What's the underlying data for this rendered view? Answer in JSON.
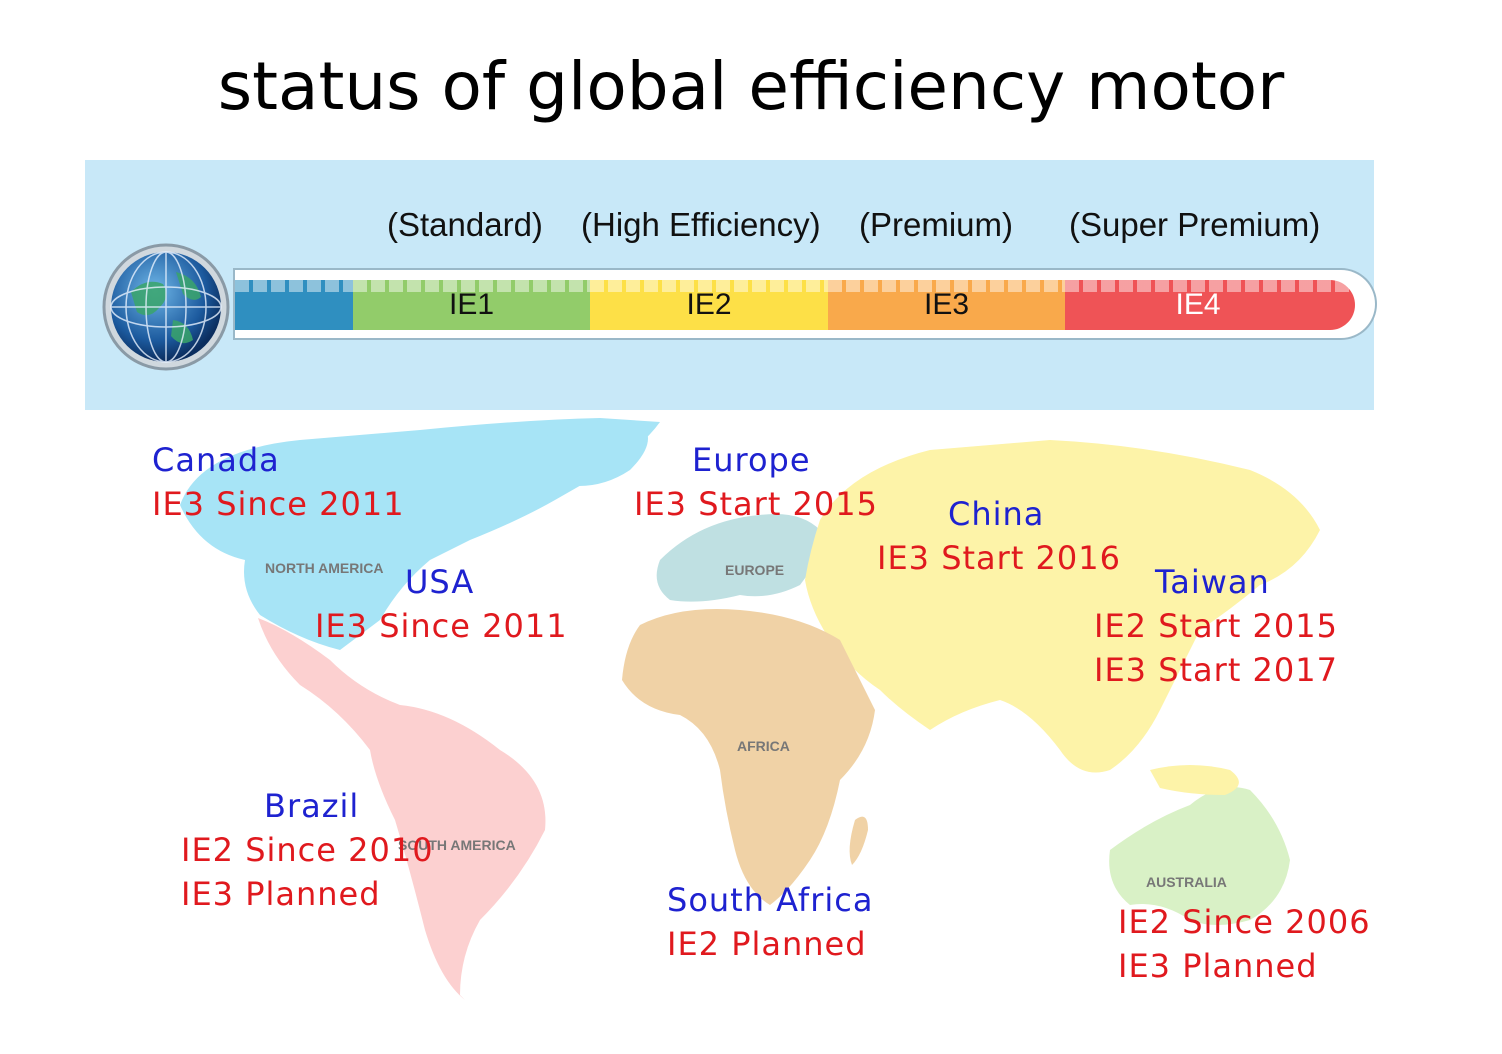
{
  "title": "status of global efficiency motor",
  "scale": {
    "classes": [
      {
        "code": "IE1",
        "name": "(Standard)",
        "color": "#92cc6a",
        "text_color": "#111111"
      },
      {
        "code": "IE2",
        "name": "(High Efficiency)",
        "color": "#fde047",
        "text_color": "#111111"
      },
      {
        "code": "IE3",
        "name": "(Premium)",
        "color": "#f9a94b",
        "text_color": "#111111"
      },
      {
        "code": "IE4",
        "name": "(Super Premium)",
        "color": "#ef5356",
        "text_color": "#ffffff"
      }
    ],
    "base_color": "#2f8fc0"
  },
  "continents": {
    "north_america": "NORTH AMERICA",
    "europe": "EUROPE",
    "africa": "AFRICA",
    "south_america": "SOUTH AMERICA",
    "australia": "AUSTRALIA"
  },
  "continent_colors": {
    "north_america": "#a7e4f6",
    "central_south_america": "#fcd0d0",
    "europe": "#bfe0e2",
    "asia": "#fdf3a8",
    "africa": "#f0d2a6",
    "australia": "#d9f1c6"
  },
  "regions": {
    "canada": {
      "name": "Canada",
      "lines": [
        "IE3 Since 2011"
      ]
    },
    "usa": {
      "name": "USA",
      "lines": [
        "IE3 Since 2011"
      ]
    },
    "europe": {
      "name": "Europe",
      "lines": [
        "IE3 Start 2015"
      ]
    },
    "china": {
      "name": "China",
      "lines": [
        "IE3 Start 2016"
      ]
    },
    "taiwan": {
      "name": "Taiwan",
      "lines": [
        "IE2 Start 2015",
        "IE3 Start 2017"
      ]
    },
    "brazil": {
      "name": "Brazil",
      "lines": [
        "IE2 Since 2010",
        "IE3 Planned"
      ]
    },
    "south_africa": {
      "name": "South Africa",
      "lines": [
        "IE2 Planned"
      ]
    },
    "australia": {
      "name": "",
      "lines": [
        "IE2 Since 2006",
        "IE3 Planned"
      ]
    }
  }
}
